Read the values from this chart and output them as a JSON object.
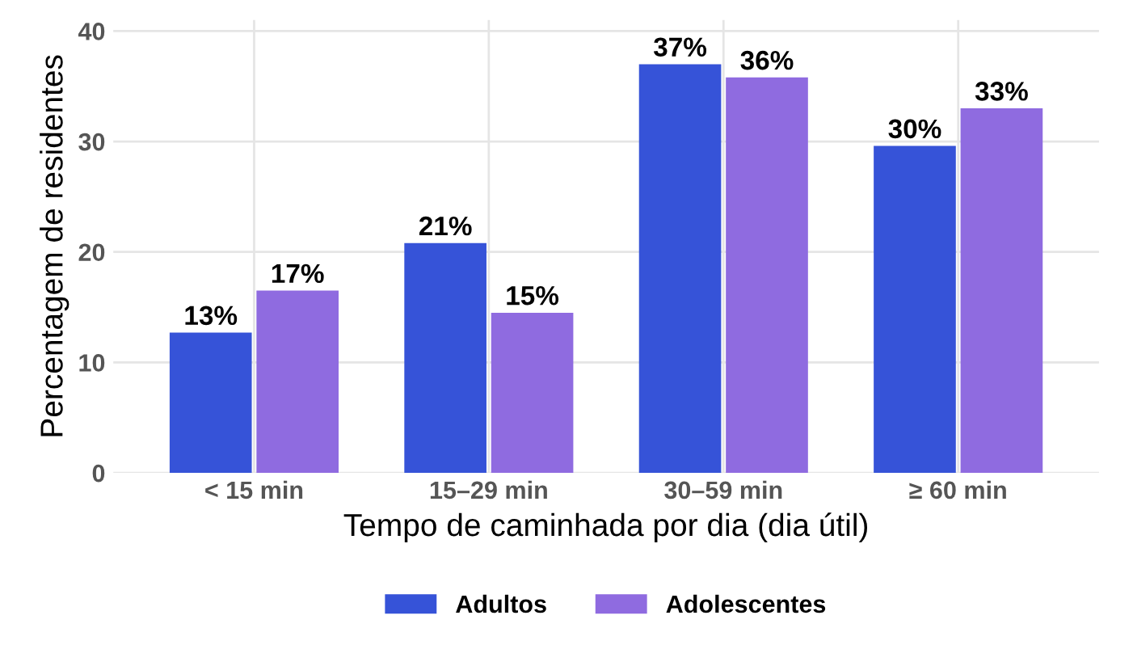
{
  "chart_data": {
    "type": "bar",
    "xlabel": "Tempo de caminhada por dia (dia útil)",
    "ylabel": "Percentagem de residentes",
    "categories": [
      "< 15 min",
      "15–29 min",
      "30–59 min",
      "≥ 60 min"
    ],
    "series": [
      {
        "name": "Adultos",
        "color": "#3653d8",
        "values": [
          12.7,
          20.8,
          37.0,
          29.6
        ],
        "value_labels": [
          "13%",
          "21%",
          "37%",
          "30%"
        ]
      },
      {
        "name": "Adolescentes",
        "color": "#8f6be0",
        "values": [
          16.5,
          14.5,
          35.8,
          33.0
        ],
        "value_labels": [
          "17%",
          "15%",
          "36%",
          "33%"
        ]
      }
    ],
    "ylim": [
      0,
      41
    ],
    "yticks": [
      0,
      10,
      20,
      30,
      40
    ],
    "grid": true,
    "legend": "bottom"
  }
}
